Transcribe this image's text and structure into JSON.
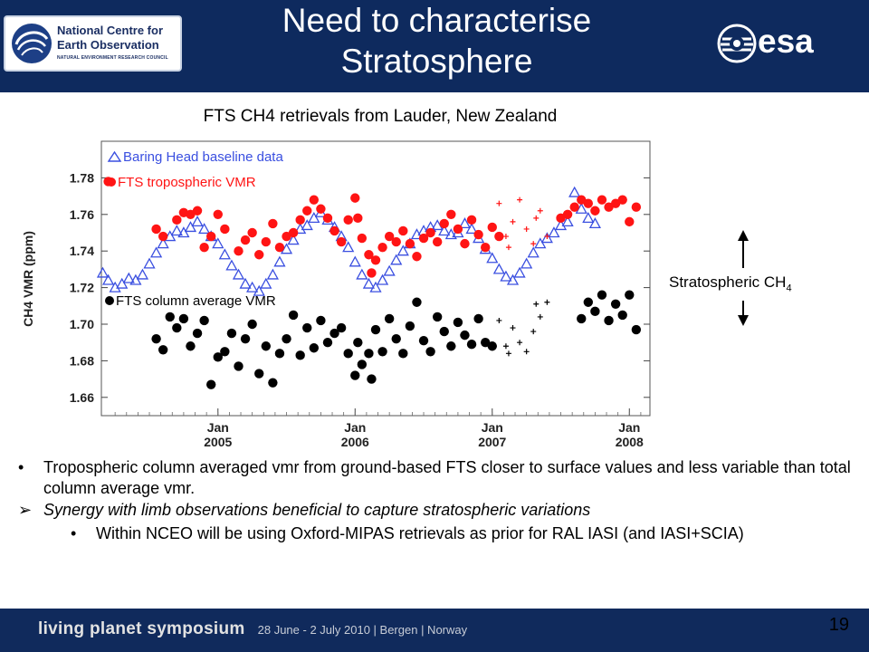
{
  "header": {
    "title_line1": "Need to characterise",
    "title_line2": "Stratosphere",
    "nceo_logo": {
      "line1": "National Centre for",
      "line2": "Earth Observation",
      "line3": "NATURAL ENVIRONMENT RESEARCH COUNCIL"
    },
    "esa_logo": {
      "text": "esa"
    },
    "colors": {
      "band": "#0e2a5e"
    }
  },
  "chart_caption": "FTS CH4 retrievals from Lauder, New Zealand",
  "chart_data": {
    "type": "scatter",
    "title": "",
    "ylabel": "CH4 VMR (ppm)",
    "xlabel": "",
    "ylim": [
      1.65,
      1.8
    ],
    "xlim": [
      2004.15,
      2008.15
    ],
    "y_ticks": [
      "1.66",
      "1.68",
      "1.70",
      "1.72",
      "1.74",
      "1.76",
      "1.78"
    ],
    "x_ticks": [
      {
        "x": 2005.0,
        "line1": "Jan",
        "line2": "2005"
      },
      {
        "x": 2006.0,
        "line1": "Jan",
        "line2": "2006"
      },
      {
        "x": 2007.0,
        "line1": "Jan",
        "line2": "2007"
      },
      {
        "x": 2008.0,
        "line1": "Jan",
        "line2": "2008"
      }
    ],
    "series": [
      {
        "name": "Baring Head baseline data",
        "marker": "triangle-open",
        "color": "#3a4fe0",
        "points": [
          [
            2004.16,
            1.728
          ],
          [
            2004.2,
            1.724
          ],
          [
            2004.25,
            1.72
          ],
          [
            2004.3,
            1.722
          ],
          [
            2004.35,
            1.725
          ],
          [
            2004.4,
            1.724
          ],
          [
            2004.45,
            1.727
          ],
          [
            2004.5,
            1.733
          ],
          [
            2004.55,
            1.739
          ],
          [
            2004.6,
            1.744
          ],
          [
            2004.65,
            1.748
          ],
          [
            2004.7,
            1.751
          ],
          [
            2004.75,
            1.75
          ],
          [
            2004.8,
            1.753
          ],
          [
            2004.85,
            1.756
          ],
          [
            2004.9,
            1.752
          ],
          [
            2004.95,
            1.748
          ],
          [
            2005.0,
            1.744
          ],
          [
            2005.05,
            1.738
          ],
          [
            2005.1,
            1.732
          ],
          [
            2005.15,
            1.727
          ],
          [
            2005.2,
            1.722
          ],
          [
            2005.25,
            1.72
          ],
          [
            2005.3,
            1.718
          ],
          [
            2005.35,
            1.722
          ],
          [
            2005.4,
            1.727
          ],
          [
            2005.45,
            1.734
          ],
          [
            2005.5,
            1.741
          ],
          [
            2005.55,
            1.746
          ],
          [
            2005.6,
            1.752
          ],
          [
            2005.65,
            1.754
          ],
          [
            2005.7,
            1.758
          ],
          [
            2005.75,
            1.761
          ],
          [
            2005.8,
            1.757
          ],
          [
            2005.85,
            1.753
          ],
          [
            2005.9,
            1.748
          ],
          [
            2005.95,
            1.742
          ],
          [
            2006.0,
            1.734
          ],
          [
            2006.05,
            1.727
          ],
          [
            2006.1,
            1.722
          ],
          [
            2006.15,
            1.72
          ],
          [
            2006.2,
            1.724
          ],
          [
            2006.25,
            1.729
          ],
          [
            2006.3,
            1.735
          ],
          [
            2006.35,
            1.74
          ],
          [
            2006.4,
            1.744
          ],
          [
            2006.45,
            1.749
          ],
          [
            2006.5,
            1.751
          ],
          [
            2006.55,
            1.753
          ],
          [
            2006.6,
            1.754
          ],
          [
            2006.65,
            1.751
          ],
          [
            2006.7,
            1.749
          ],
          [
            2006.75,
            1.75
          ],
          [
            2006.8,
            1.755
          ],
          [
            2006.85,
            1.752
          ],
          [
            2006.9,
            1.747
          ],
          [
            2006.95,
            1.741
          ],
          [
            2007.0,
            1.736
          ],
          [
            2007.05,
            1.73
          ],
          [
            2007.1,
            1.726
          ],
          [
            2007.15,
            1.724
          ],
          [
            2007.2,
            1.728
          ],
          [
            2007.25,
            1.733
          ],
          [
            2007.3,
            1.739
          ],
          [
            2007.35,
            1.744
          ],
          [
            2007.4,
            1.747
          ],
          [
            2007.45,
            1.75
          ],
          [
            2007.5,
            1.754
          ],
          [
            2007.55,
            1.756
          ],
          [
            2007.6,
            1.772
          ],
          [
            2007.65,
            1.763
          ],
          [
            2007.7,
            1.758
          ],
          [
            2007.75,
            1.755
          ]
        ]
      },
      {
        "name": "FTS tropospheric VMR",
        "marker": "dot",
        "color": "#ff1414",
        "points": [
          [
            2004.2,
            1.778
          ],
          [
            2004.55,
            1.752
          ],
          [
            2004.6,
            1.748
          ],
          [
            2004.7,
            1.757
          ],
          [
            2004.75,
            1.761
          ],
          [
            2004.8,
            1.76
          ],
          [
            2004.85,
            1.762
          ],
          [
            2004.9,
            1.742
          ],
          [
            2004.95,
            1.748
          ],
          [
            2005.0,
            1.76
          ],
          [
            2005.05,
            1.752
          ],
          [
            2005.15,
            1.74
          ],
          [
            2005.2,
            1.746
          ],
          [
            2005.25,
            1.75
          ],
          [
            2005.3,
            1.738
          ],
          [
            2005.35,
            1.745
          ],
          [
            2005.4,
            1.755
          ],
          [
            2005.45,
            1.742
          ],
          [
            2005.5,
            1.748
          ],
          [
            2005.55,
            1.75
          ],
          [
            2005.6,
            1.757
          ],
          [
            2005.65,
            1.762
          ],
          [
            2005.7,
            1.768
          ],
          [
            2005.75,
            1.763
          ],
          [
            2005.8,
            1.758
          ],
          [
            2005.85,
            1.751
          ],
          [
            2005.9,
            1.745
          ],
          [
            2005.95,
            1.757
          ],
          [
            2006.0,
            1.769
          ],
          [
            2006.02,
            1.758
          ],
          [
            2006.05,
            1.747
          ],
          [
            2006.1,
            1.738
          ],
          [
            2006.12,
            1.728
          ],
          [
            2006.15,
            1.735
          ],
          [
            2006.2,
            1.742
          ],
          [
            2006.25,
            1.748
          ],
          [
            2006.3,
            1.745
          ],
          [
            2006.35,
            1.751
          ],
          [
            2006.4,
            1.744
          ],
          [
            2006.45,
            1.737
          ],
          [
            2006.5,
            1.747
          ],
          [
            2006.55,
            1.75
          ],
          [
            2006.6,
            1.745
          ],
          [
            2006.65,
            1.755
          ],
          [
            2006.7,
            1.76
          ],
          [
            2006.75,
            1.752
          ],
          [
            2006.8,
            1.744
          ],
          [
            2006.85,
            1.757
          ],
          [
            2006.9,
            1.749
          ],
          [
            2006.95,
            1.742
          ],
          [
            2007.0,
            1.753
          ],
          [
            2007.05,
            1.748
          ],
          [
            2007.5,
            1.758
          ],
          [
            2007.55,
            1.76
          ],
          [
            2007.6,
            1.764
          ],
          [
            2007.65,
            1.768
          ],
          [
            2007.7,
            1.766
          ],
          [
            2007.75,
            1.762
          ],
          [
            2007.8,
            1.768
          ],
          [
            2007.85,
            1.764
          ],
          [
            2007.9,
            1.766
          ],
          [
            2007.95,
            1.768
          ],
          [
            2008.0,
            1.756
          ],
          [
            2008.05,
            1.764
          ]
        ]
      },
      {
        "name": "FTS tropospheric VMR (+)",
        "marker": "plus",
        "color": "#ff1414",
        "points": [
          [
            2007.05,
            1.766
          ],
          [
            2007.1,
            1.748
          ],
          [
            2007.12,
            1.742
          ],
          [
            2007.15,
            1.756
          ],
          [
            2007.2,
            1.768
          ],
          [
            2007.25,
            1.752
          ],
          [
            2007.3,
            1.744
          ],
          [
            2007.32,
            1.758
          ],
          [
            2007.35,
            1.762
          ],
          [
            2007.4,
            1.748
          ]
        ]
      },
      {
        "name": "FTS column average VMR",
        "marker": "dot",
        "color": "#000000",
        "points": [
          [
            2004.55,
            1.692
          ],
          [
            2004.6,
            1.686
          ],
          [
            2004.65,
            1.704
          ],
          [
            2004.7,
            1.698
          ],
          [
            2004.75,
            1.703
          ],
          [
            2004.8,
            1.688
          ],
          [
            2004.85,
            1.695
          ],
          [
            2004.9,
            1.702
          ],
          [
            2004.95,
            1.667
          ],
          [
            2005.0,
            1.682
          ],
          [
            2005.05,
            1.685
          ],
          [
            2005.1,
            1.695
          ],
          [
            2005.15,
            1.677
          ],
          [
            2005.2,
            1.692
          ],
          [
            2005.25,
            1.7
          ],
          [
            2005.3,
            1.673
          ],
          [
            2005.35,
            1.688
          ],
          [
            2005.4,
            1.668
          ],
          [
            2005.45,
            1.684
          ],
          [
            2005.5,
            1.692
          ],
          [
            2005.55,
            1.705
          ],
          [
            2005.6,
            1.683
          ],
          [
            2005.65,
            1.698
          ],
          [
            2005.7,
            1.687
          ],
          [
            2005.75,
            1.702
          ],
          [
            2005.8,
            1.69
          ],
          [
            2005.85,
            1.695
          ],
          [
            2005.9,
            1.698
          ],
          [
            2005.95,
            1.684
          ],
          [
            2006.0,
            1.672
          ],
          [
            2006.02,
            1.69
          ],
          [
            2006.05,
            1.678
          ],
          [
            2006.1,
            1.684
          ],
          [
            2006.12,
            1.67
          ],
          [
            2006.15,
            1.697
          ],
          [
            2006.2,
            1.685
          ],
          [
            2006.25,
            1.703
          ],
          [
            2006.3,
            1.692
          ],
          [
            2006.35,
            1.684
          ],
          [
            2006.4,
            1.699
          ],
          [
            2006.45,
            1.712
          ],
          [
            2006.5,
            1.691
          ],
          [
            2006.55,
            1.685
          ],
          [
            2006.6,
            1.704
          ],
          [
            2006.65,
            1.696
          ],
          [
            2006.7,
            1.688
          ],
          [
            2006.75,
            1.701
          ],
          [
            2006.8,
            1.694
          ],
          [
            2006.85,
            1.689
          ],
          [
            2006.9,
            1.703
          ],
          [
            2006.95,
            1.69
          ],
          [
            2007.0,
            1.688
          ],
          [
            2007.65,
            1.703
          ],
          [
            2007.7,
            1.712
          ],
          [
            2007.75,
            1.707
          ],
          [
            2007.8,
            1.716
          ],
          [
            2007.85,
            1.702
          ],
          [
            2007.9,
            1.711
          ],
          [
            2007.95,
            1.705
          ],
          [
            2008.0,
            1.716
          ],
          [
            2008.05,
            1.697
          ]
        ]
      },
      {
        "name": "FTS column average VMR (+)",
        "marker": "plus",
        "color": "#000000",
        "points": [
          [
            2007.05,
            1.702
          ],
          [
            2007.1,
            1.688
          ],
          [
            2007.12,
            1.684
          ],
          [
            2007.15,
            1.698
          ],
          [
            2007.2,
            1.69
          ],
          [
            2007.25,
            1.685
          ],
          [
            2007.3,
            1.696
          ],
          [
            2007.32,
            1.711
          ],
          [
            2007.35,
            1.704
          ],
          [
            2007.4,
            1.712
          ]
        ]
      }
    ],
    "legend": {
      "placement": "inline",
      "entries": [
        "Baring Head baseline data",
        "FTS tropospheric VMR",
        "FTS column average VMR"
      ]
    }
  },
  "annotation": {
    "text": "Stratospheric CH",
    "subscript": "4"
  },
  "bullets": {
    "b1_mark": "•",
    "b1": "Tropospheric column averaged vmr from ground-based FTS closer to surface values and less variable than total column average vmr.",
    "b2_mark": "➢",
    "b2": "Synergy with limb observations beneficial to capture stratospheric variations",
    "b3_mark": "•",
    "b3": "Within NCEO will be using Oxford-MIPAS retrievals as prior for RAL IASI (and IASI+SCIA)"
  },
  "footer": {
    "symposium": "living planet symposium",
    "dates": "28 June - 2 July 2010 | Bergen | Norway",
    "colors": {
      "band": "#102a5c"
    }
  },
  "page_number": "19"
}
